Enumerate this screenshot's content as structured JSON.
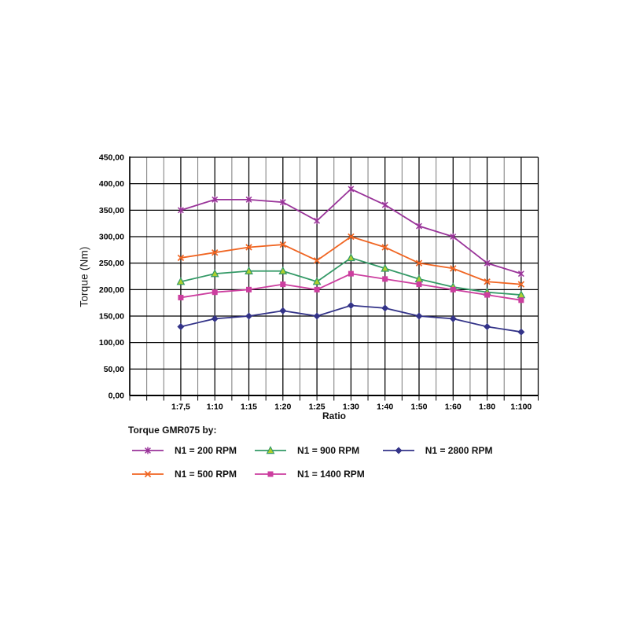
{
  "page": {
    "background": "#ffffff"
  },
  "chart_data": {
    "type": "line",
    "title": "",
    "xlabel": "Ratio",
    "ylabel": "Torque (Nm)",
    "ylim": [
      0,
      450
    ],
    "ytick_step": 50,
    "ytick_labels": [
      "0,00",
      "50,00",
      "100,00",
      "150,00",
      "200,00",
      "250,00",
      "300,00",
      "350,00",
      "400,00",
      "450,00"
    ],
    "categories": [
      "1:7,5",
      "1:10",
      "1:15",
      "1:20",
      "1:25",
      "1:30",
      "1:40",
      "1:50",
      "1:60",
      "1:80",
      "1:100"
    ],
    "series": [
      {
        "name": "N1 = 200 RPM",
        "color": "#993399",
        "marker": "star",
        "values": [
          350,
          370,
          370,
          365,
          330,
          390,
          360,
          320,
          300,
          250,
          230
        ]
      },
      {
        "name": "N1 = 500 RPM",
        "color": "#F06522",
        "marker": "x",
        "values": [
          260,
          270,
          280,
          285,
          255,
          300,
          280,
          250,
          240,
          215,
          210
        ]
      },
      {
        "name": "N1 = 900 RPM",
        "color": "#339966",
        "marker": "triangle",
        "marker_fill": "#AECF2E",
        "values": [
          215,
          230,
          235,
          235,
          215,
          260,
          240,
          220,
          205,
          195,
          190
        ]
      },
      {
        "name": "N1 = 1400 RPM",
        "color": "#CC3E9F",
        "marker": "square",
        "values": [
          185,
          195,
          200,
          210,
          200,
          230,
          220,
          210,
          200,
          190,
          180
        ]
      },
      {
        "name": "N1 = 2800 RPM",
        "color": "#333388",
        "marker": "diamond",
        "values": [
          130,
          145,
          150,
          160,
          150,
          170,
          165,
          150,
          145,
          130,
          120
        ]
      }
    ],
    "legend": {
      "title": "Torque GMR075 by:",
      "position": "bottom",
      "columns": 3,
      "flow": "column"
    },
    "grid": {
      "h_major": true,
      "v_major": true,
      "v_minor": true,
      "major_color": "#000000",
      "minor_color": "#7a7a7a"
    }
  }
}
